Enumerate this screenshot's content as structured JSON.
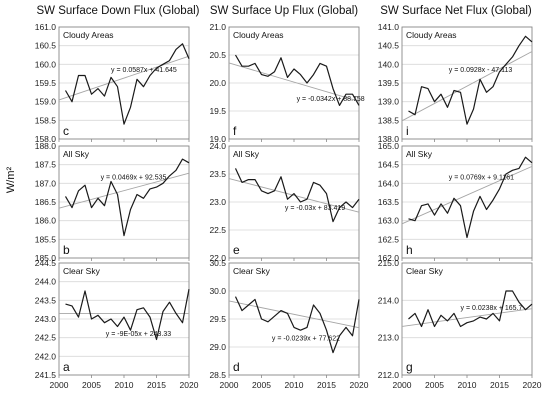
{
  "figure": {
    "y_axis_label": "W/m²",
    "column_titles": [
      "SW Surface Down Flux (Global)",
      "SW Surface Up Flux (Global)",
      "SW Surface Net Flux (Global)"
    ],
    "x_ticks": [
      "2000",
      "2005",
      "2010",
      "2015",
      "2020"
    ]
  },
  "chart_data": [
    {
      "type": "line",
      "letter": "c",
      "label": "Cloudy Areas",
      "equation": "y = 0.0587x + 41.645",
      "ylim": [
        158.0,
        161.0
      ],
      "yticks": [
        "161.0",
        "160.5",
        "160.0",
        "159.5",
        "159.0",
        "158.5",
        "158.0"
      ],
      "trend": {
        "slope": 0.0587,
        "intercept": 41.645
      },
      "x": [
        2001,
        2002,
        2003,
        2004,
        2005,
        2006,
        2007,
        2008,
        2009,
        2010,
        2011,
        2012,
        2013,
        2014,
        2015,
        2016,
        2017,
        2018,
        2019,
        2020
      ],
      "y": [
        159.3,
        159.0,
        159.7,
        159.7,
        159.2,
        159.35,
        159.15,
        159.65,
        159.4,
        158.4,
        158.85,
        159.6,
        159.4,
        159.7,
        159.9,
        160.0,
        160.1,
        160.4,
        160.55,
        160.15
      ]
    },
    {
      "type": "line",
      "letter": "f",
      "label": "Cloudy Areas",
      "equation": "y = -0.0342x + 88.758",
      "ylim": [
        19.0,
        21.0
      ],
      "yticks": [
        "21.0",
        "20.5",
        "20.0",
        "19.5",
        "19.0"
      ],
      "trend": {
        "slope": -0.0342,
        "intercept": 88.758
      },
      "x": [
        2001,
        2002,
        2003,
        2004,
        2005,
        2006,
        2007,
        2008,
        2009,
        2010,
        2011,
        2012,
        2013,
        2014,
        2015,
        2016,
        2017,
        2018,
        2019,
        2020
      ],
      "y": [
        20.5,
        20.3,
        20.3,
        20.35,
        20.15,
        20.12,
        20.2,
        20.45,
        20.1,
        20.25,
        20.15,
        20.0,
        20.15,
        20.35,
        20.3,
        19.9,
        19.6,
        19.8,
        19.8,
        19.6
      ]
    },
    {
      "type": "line",
      "letter": "i",
      "label": "Cloudy Areas",
      "equation": "y = 0.0928x - 47.113",
      "ylim": [
        138.0,
        141.0
      ],
      "yticks": [
        "141.0",
        "140.5",
        "140.0",
        "139.5",
        "139.0",
        "138.5",
        "138.0"
      ],
      "trend": {
        "slope": 0.0928,
        "intercept": -47.113
      },
      "x": [
        2001,
        2002,
        2003,
        2004,
        2005,
        2006,
        2007,
        2008,
        2009,
        2010,
        2011,
        2012,
        2013,
        2014,
        2015,
        2016,
        2017,
        2018,
        2019,
        2020
      ],
      "y": [
        138.75,
        138.65,
        139.4,
        139.35,
        139.0,
        139.2,
        138.85,
        139.3,
        139.25,
        138.4,
        138.8,
        139.6,
        139.25,
        139.4,
        139.8,
        140.0,
        140.2,
        140.5,
        140.75,
        140.6
      ]
    },
    {
      "type": "line",
      "letter": "b",
      "label": "All Sky",
      "equation": "y = 0.0469x + 92.535",
      "ylim": [
        185.0,
        188.0
      ],
      "yticks": [
        "188.0",
        "187.5",
        "187.0",
        "186.5",
        "186.0",
        "185.5",
        "185.0"
      ],
      "trend": {
        "slope": 0.0469,
        "intercept": 92.535
      },
      "x": [
        2001,
        2002,
        2003,
        2004,
        2005,
        2006,
        2007,
        2008,
        2009,
        2010,
        2011,
        2012,
        2013,
        2014,
        2015,
        2016,
        2017,
        2018,
        2019,
        2020
      ],
      "y": [
        186.65,
        186.35,
        186.8,
        186.95,
        186.35,
        186.6,
        186.4,
        187.05,
        186.7,
        185.6,
        186.3,
        186.7,
        186.6,
        186.85,
        186.9,
        187.0,
        187.2,
        187.35,
        187.65,
        187.55
      ]
    },
    {
      "type": "line",
      "letter": "e",
      "label": "All Sky",
      "equation": "y = -0.03x + 83.419",
      "ylim": [
        22.0,
        24.0
      ],
      "yticks": [
        "24.0",
        "23.5",
        "23.0",
        "22.5",
        "22.0"
      ],
      "trend": {
        "slope": -0.03,
        "intercept": 83.419
      },
      "x": [
        2001,
        2002,
        2003,
        2004,
        2005,
        2006,
        2007,
        2008,
        2009,
        2010,
        2011,
        2012,
        2013,
        2014,
        2015,
        2016,
        2017,
        2018,
        2019,
        2020
      ],
      "y": [
        23.6,
        23.35,
        23.4,
        23.4,
        23.2,
        23.15,
        23.2,
        23.45,
        23.05,
        23.15,
        23.0,
        23.05,
        23.35,
        23.3,
        23.15,
        22.65,
        22.9,
        23.0,
        22.9,
        23.05
      ]
    },
    {
      "type": "line",
      "letter": "h",
      "label": "All Sky",
      "equation": "y = 0.0769x + 9.1161",
      "ylim": [
        162.0,
        165.0
      ],
      "yticks": [
        "165.0",
        "164.5",
        "164.0",
        "163.5",
        "163.0",
        "162.5",
        "162.0"
      ],
      "trend": {
        "slope": 0.0769,
        "intercept": 9.1161
      },
      "x": [
        2001,
        2002,
        2003,
        2004,
        2005,
        2006,
        2007,
        2008,
        2009,
        2010,
        2011,
        2012,
        2013,
        2014,
        2015,
        2016,
        2017,
        2018,
        2019,
        2020
      ],
      "y": [
        163.05,
        163.0,
        163.4,
        163.45,
        163.15,
        163.45,
        163.2,
        163.6,
        163.4,
        162.55,
        163.25,
        163.65,
        163.3,
        163.55,
        163.85,
        164.25,
        164.35,
        164.4,
        164.7,
        164.55
      ]
    },
    {
      "type": "line",
      "letter": "a",
      "label": "Clear Sky",
      "equation": "y = -9E-05x + 243.33",
      "ylim": [
        241.5,
        244.5
      ],
      "yticks": [
        "244.5",
        "244.0",
        "243.5",
        "243.0",
        "242.5",
        "242.0",
        "241.5"
      ],
      "trend": {
        "slope": -9e-05,
        "intercept": 243.33
      },
      "x": [
        2001,
        2002,
        2003,
        2004,
        2005,
        2006,
        2007,
        2008,
        2009,
        2010,
        2011,
        2012,
        2013,
        2014,
        2015,
        2016,
        2017,
        2018,
        2019,
        2020
      ],
      "y": [
        243.4,
        243.35,
        243.05,
        243.75,
        243.0,
        243.1,
        242.9,
        243.0,
        242.8,
        243.05,
        242.7,
        243.25,
        243.3,
        243.05,
        242.45,
        243.2,
        243.45,
        243.15,
        242.9,
        243.8
      ]
    },
    {
      "type": "line",
      "letter": "d",
      "label": "Clear Sky",
      "equation": "y = -0.0239x + 77.622",
      "ylim": [
        28.5,
        30.5
      ],
      "yticks": [
        "30.5",
        "30.0",
        "29.5",
        "29.0",
        "28.5"
      ],
      "trend": {
        "slope": -0.0239,
        "intercept": 77.622
      },
      "x": [
        2001,
        2002,
        2003,
        2004,
        2005,
        2006,
        2007,
        2008,
        2009,
        2010,
        2011,
        2012,
        2013,
        2014,
        2015,
        2016,
        2017,
        2018,
        2019,
        2020
      ],
      "y": [
        29.9,
        29.65,
        29.75,
        29.85,
        29.5,
        29.45,
        29.55,
        29.65,
        29.6,
        29.35,
        29.3,
        29.35,
        29.75,
        29.6,
        29.3,
        28.9,
        29.2,
        29.35,
        29.2,
        29.85
      ]
    },
    {
      "type": "line",
      "letter": "g",
      "label": "Clear Sky",
      "equation": "y = 0.0238x + 165.7",
      "ylim": [
        212.0,
        215.0
      ],
      "yticks": [
        "215.0",
        "214.0",
        "213.0",
        "212.0"
      ],
      "trend": {
        "slope": 0.0238,
        "intercept": 165.7
      },
      "x": [
        2001,
        2002,
        2003,
        2004,
        2005,
        2006,
        2007,
        2008,
        2009,
        2010,
        2011,
        2012,
        2013,
        2014,
        2015,
        2016,
        2017,
        2018,
        2019,
        2020
      ],
      "y": [
        213.5,
        213.65,
        213.3,
        213.75,
        213.3,
        213.6,
        213.45,
        213.65,
        213.3,
        213.4,
        213.45,
        213.55,
        213.5,
        213.65,
        213.45,
        214.25,
        214.25,
        213.95,
        213.75,
        213.9
      ]
    }
  ]
}
